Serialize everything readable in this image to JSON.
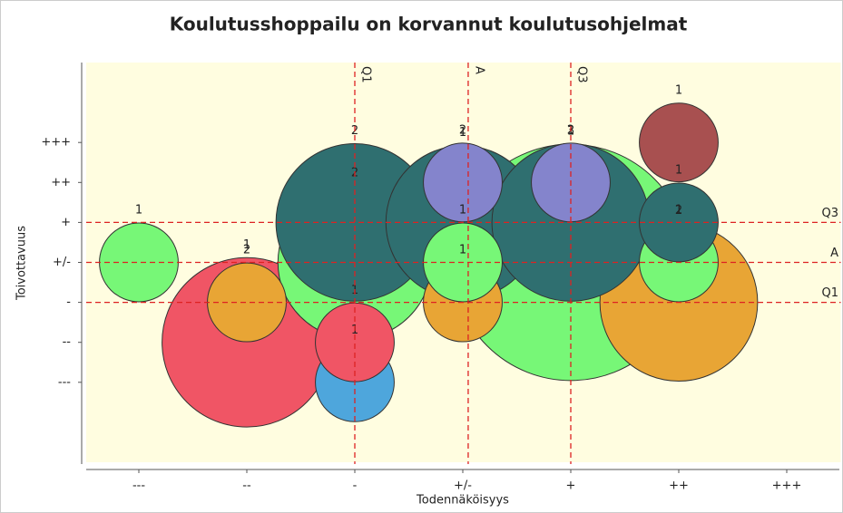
{
  "chart_data": {
    "type": "bubble",
    "title": "Koulutusshoppailu on korvannut koulutusohjelmat",
    "xlabel": "Todennäköisyys",
    "ylabel": "Toivottavuus",
    "xlim": [
      0.5,
      7.5
    ],
    "ylim": [
      -1,
      9
    ],
    "xticks": [
      {
        "value": 1,
        "label": "---"
      },
      {
        "value": 2,
        "label": "--"
      },
      {
        "value": 3,
        "label": "-"
      },
      {
        "value": 4,
        "label": "+/-"
      },
      {
        "value": 5,
        "label": "+"
      },
      {
        "value": 6,
        "label": "++"
      },
      {
        "value": 7,
        "label": "+++"
      }
    ],
    "yticks": [
      {
        "value": 1,
        "label": "---"
      },
      {
        "value": 2,
        "label": "--"
      },
      {
        "value": 3,
        "label": "-"
      },
      {
        "value": 4,
        "label": "+/-"
      },
      {
        "value": 5,
        "label": "+"
      },
      {
        "value": 6,
        "label": "++"
      },
      {
        "value": 7,
        "label": "+++"
      }
    ],
    "series": [
      {
        "x": [
          2,
          5,
          6,
          3,
          3,
          4,
          5,
          1,
          2,
          3,
          3,
          4,
          4,
          4,
          5,
          6,
          6,
          6
        ],
        "y": [
          2,
          4,
          3,
          4,
          5,
          5,
          5,
          4,
          3,
          1,
          2,
          3,
          4,
          6,
          6,
          4,
          5,
          7
        ],
        "size": [
          2.15,
          3,
          2,
          1.95,
          2,
          1.95,
          2,
          1,
          1,
          1,
          1,
          1,
          1,
          1,
          1,
          1,
          1,
          1
        ],
        "labels": [
          1,
          1,
          2,
          2,
          2,
          1,
          3,
          1,
          2,
          1,
          1,
          1,
          1,
          2,
          2,
          1,
          1,
          1
        ],
        "colors": [
          "#f05565",
          "#77f777",
          "#e8a535",
          "#77f777",
          "#2f6f70",
          "#2f6f70",
          "#2f6f70",
          "#77f777",
          "#e8a535",
          "#4ea6dc",
          "#f05565",
          "#e8a535",
          "#77f777",
          "#8484cc",
          "#8484cc",
          "#77f777",
          "#2f6f70",
          "#a85050"
        ]
      }
    ],
    "reference_lines": [
      {
        "axis": "x",
        "value": 3,
        "label": "Q1"
      },
      {
        "axis": "x",
        "value": 4.05,
        "label": "A"
      },
      {
        "axis": "x",
        "value": 5,
        "label": "Q3"
      },
      {
        "axis": "y",
        "value": 5,
        "label": "Q3"
      },
      {
        "axis": "y",
        "value": 4,
        "label": "A"
      },
      {
        "axis": "y",
        "value": 3,
        "label": "Q1"
      }
    ],
    "line_color": "#dd2222",
    "background": "#fffde0"
  }
}
